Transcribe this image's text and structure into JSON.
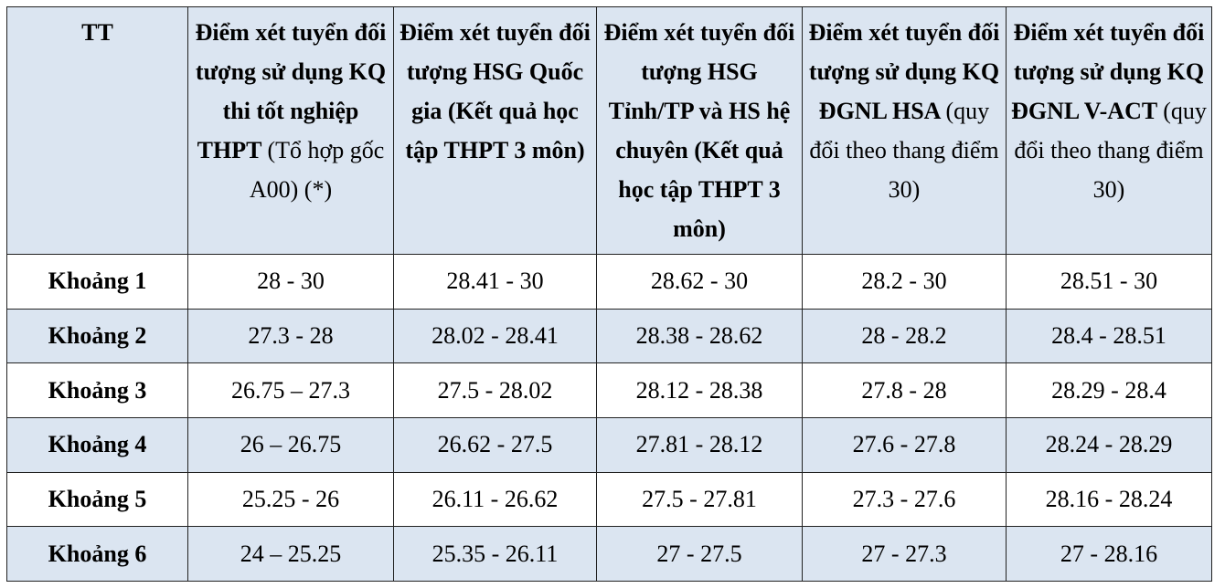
{
  "table": {
    "header": [
      [
        "TT"
      ],
      [
        "Điểm xét tuyển đối tượng sử dụng KQ thi tốt nghiệp THPT",
        "(Tổ hợp gốc A00) (*)"
      ],
      [
        "Điểm xét tuyển đối tượng HSG Quốc gia (Kết quả học tập THPT 3 môn)"
      ],
      [
        "Điểm xét tuyển đối tượng HSG Tỉnh/TP và HS hệ chuyên (Kết quả học tập THPT 3 môn)"
      ],
      [
        "Điểm xét tuyển đối tượng sử dụng KQ ĐGNL HSA",
        "(quy đổi theo thang điểm 30)"
      ],
      [
        "Điểm xét tuyển đối tượng sử dụng KQ ĐGNL V-ACT",
        "(quy đổi theo thang điểm 30)"
      ]
    ],
    "rows": [
      [
        "Khoảng 1",
        "28 - 30",
        "28.41 - 30",
        "28.62 - 30",
        "28.2 - 30",
        "28.51 - 30"
      ],
      [
        "Khoảng 2",
        "27.3 - 28",
        "28.02 - 28.41",
        "28.38 - 28.62",
        "28 - 28.2",
        "28.4 - 28.51"
      ],
      [
        "Khoảng 3",
        "26.75 – 27.3",
        "27.5 - 28.02",
        "28.12 - 28.38",
        "27.8 - 28",
        "28.29 - 28.4"
      ],
      [
        "Khoảng 4",
        "26 – 26.75",
        "26.62 - 27.5",
        "27.81 - 28.12",
        "27.6 - 27.8",
        "28.24 - 28.29"
      ],
      [
        "Khoảng 5",
        "25.25 - 26",
        "26.11 - 26.62",
        "27.5 - 27.81",
        "27.3 - 27.6",
        "28.16 - 28.24"
      ],
      [
        "Khoảng 6",
        "24 – 25.25",
        "25.35 - 26.11",
        "27 - 27.5",
        "27 - 27.3",
        "27 - 28.16"
      ]
    ]
  }
}
